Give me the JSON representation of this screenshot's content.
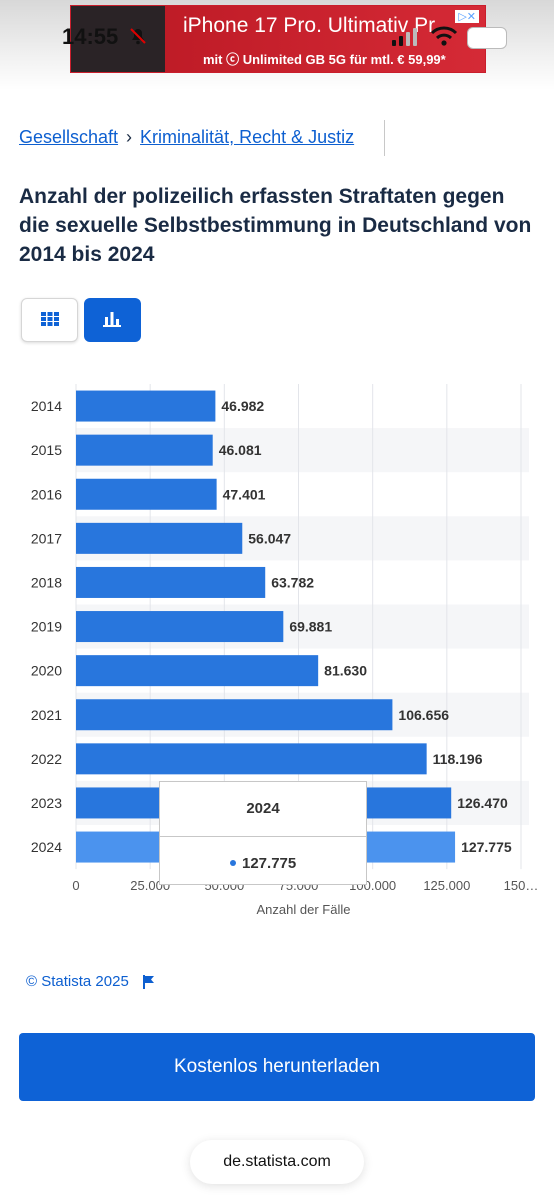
{
  "status_bar": {
    "time": "14:55"
  },
  "ad": {
    "title": "iPhone 17 Pro. Ultimativ Pr",
    "subtitle": "mit ⓒ Unlimited GB 5G für mtl. € 59,99*",
    "mark": "▷✕"
  },
  "breadcrumb": {
    "items": [
      "Gesellschaft",
      "Kriminalität, Recht & Justiz"
    ],
    "separator": "›"
  },
  "page_title": "Anzahl der polizeilich erfassten Straftaten gegen die sexuelle Selbstbestimmung in Deutschland von 2014 bis 2024",
  "view_toggle": {
    "active": "chart",
    "icons": [
      "grid-icon",
      "bar-chart-icon"
    ]
  },
  "colors": {
    "bar": "#2876dd",
    "bar_highlight": "#4b93ee",
    "accent": "#0e62d6"
  },
  "chart_data": {
    "type": "bar",
    "orientation": "horizontal",
    "categories": [
      "2014",
      "2015",
      "2016",
      "2017",
      "2018",
      "2019",
      "2020",
      "2021",
      "2022",
      "2023",
      "2024"
    ],
    "values": [
      46982,
      46081,
      47401,
      56047,
      63782,
      69881,
      81630,
      106656,
      118196,
      126470,
      127775
    ],
    "value_labels": [
      "46.982",
      "46.081",
      "47.401",
      "56.047",
      "63.782",
      "69.881",
      "81.630",
      "106.656",
      "118.196",
      "126.470",
      "127.775"
    ],
    "xlabel": "Anzahl der Fälle",
    "ylabel": "",
    "xlim": [
      0,
      150000
    ],
    "x_ticks": [
      "0",
      "25.000",
      "50.000",
      "75.000",
      "100.000",
      "125.000",
      "150…"
    ],
    "grid": true,
    "highlighted": "2024",
    "tooltip": {
      "year": "2024",
      "value": "127.775"
    }
  },
  "footer": {
    "copyright": "© Statista 2025",
    "download_label": "Kostenlos herunterladen",
    "url": "de.statista.com"
  }
}
